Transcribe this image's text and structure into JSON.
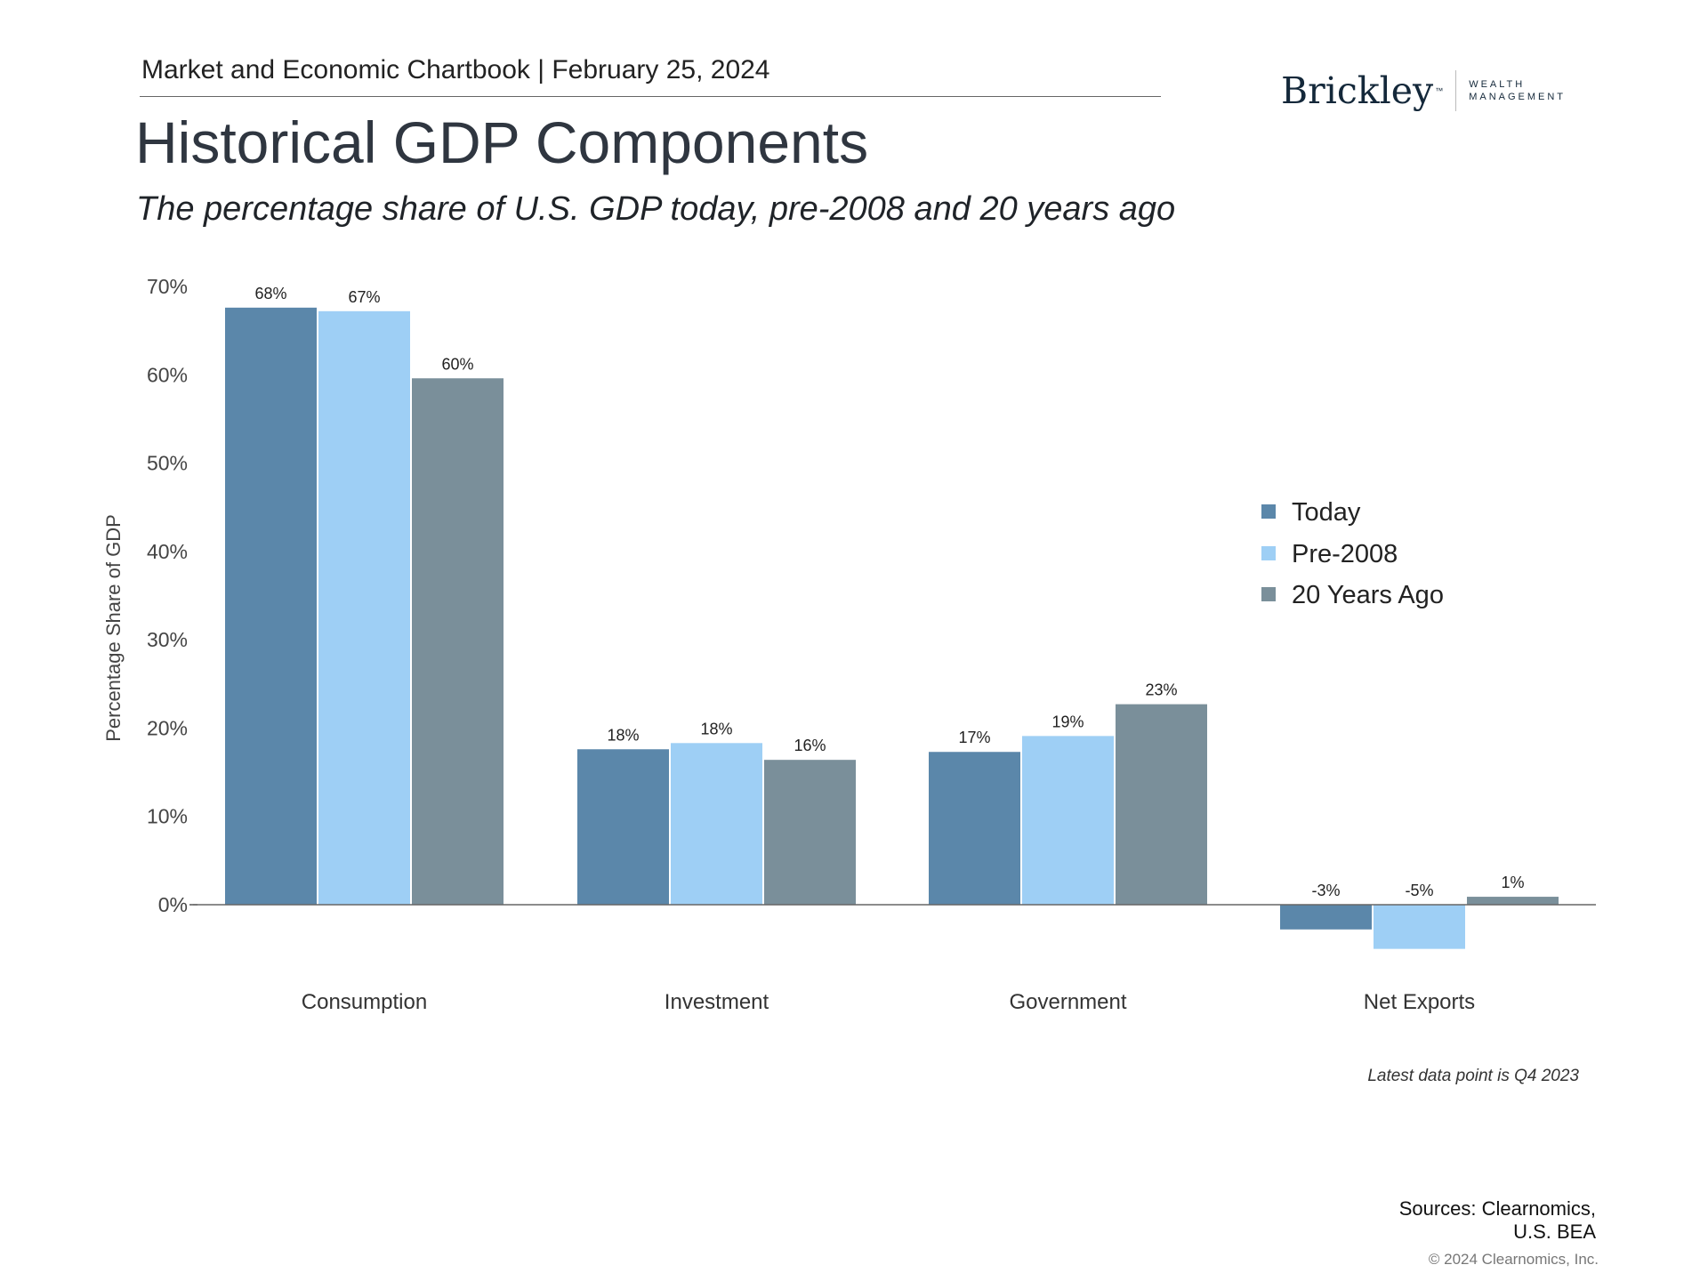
{
  "header": {
    "text": "Market and Economic Chartbook | February 25, 2024"
  },
  "logo": {
    "brand": "Brickley",
    "tm": "™",
    "line1": "WEALTH",
    "line2": "MANAGEMENT"
  },
  "title": "Historical GDP Components",
  "subtitle": "The percentage share of U.S. GDP today, pre-2008 and 20 years ago",
  "chart_data": {
    "type": "bar",
    "title": "Historical GDP Components",
    "ylabel": "Percentage Share of GDP",
    "xlabel": "",
    "ylim": [
      -5,
      70
    ],
    "yticks": [
      "0%",
      "10%",
      "20%",
      "30%",
      "40%",
      "50%",
      "60%",
      "70%"
    ],
    "ytick_values": [
      0,
      10,
      20,
      30,
      40,
      50,
      60,
      70
    ],
    "grid": false,
    "legend_position": "right",
    "categories": [
      "Consumption",
      "Investment",
      "Government",
      "Net Exports"
    ],
    "series": [
      {
        "name": "Today",
        "color": "#5b87aa",
        "values": [
          67.6,
          17.6,
          17.3,
          -2.8
        ],
        "labels": [
          "68%",
          "18%",
          "17%",
          "-3%"
        ]
      },
      {
        "name": "Pre-2008",
        "color": "#9ecff5",
        "values": [
          67.2,
          18.3,
          19.1,
          -5.0
        ],
        "labels": [
          "67%",
          "18%",
          "19%",
          "-5%"
        ]
      },
      {
        "name": "20 Years Ago",
        "color": "#7a8f9a",
        "values": [
          59.6,
          16.4,
          22.7,
          0.9
        ],
        "labels": [
          "60%",
          "16%",
          "23%",
          "1%"
        ]
      }
    ]
  },
  "footnote": "Latest data point is Q4 2023",
  "sources": {
    "line1": "Sources: Clearnomics,",
    "line2": "U.S. BEA"
  },
  "copyright": "© 2024 Clearnomics, Inc."
}
